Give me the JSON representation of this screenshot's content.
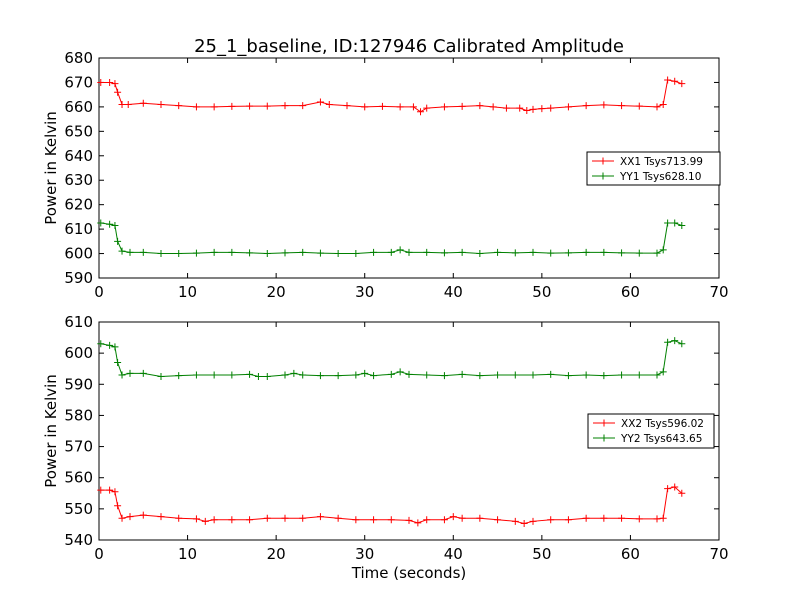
{
  "chart_data": [
    {
      "type": "line",
      "title": "25_1_baseline, ID:127946 Calibrated Amplitude",
      "xlabel": "",
      "ylabel": "Power in Kelvin",
      "xlim": [
        0,
        70
      ],
      "ylim": [
        590,
        680
      ],
      "xticks": [
        "0",
        "10",
        "20",
        "30",
        "40",
        "50",
        "60",
        "70"
      ],
      "yticks": [
        "590",
        "600",
        "610",
        "620",
        "630",
        "640",
        "650",
        "660",
        "670",
        "680"
      ],
      "grid": false,
      "legend": "center-right",
      "marker": "+",
      "series": [
        {
          "name": "XX1 Tsys713.99",
          "color": "#ff0000",
          "points": [
            [
              0.2,
              670
            ],
            [
              1.2,
              670
            ],
            [
              1.8,
              669.5
            ],
            [
              2.1,
              666
            ],
            [
              2.6,
              661
            ],
            [
              3.3,
              661
            ],
            [
              5,
              661.5
            ],
            [
              7,
              661
            ],
            [
              9,
              660.5
            ],
            [
              11,
              660
            ],
            [
              13,
              660
            ],
            [
              15,
              660.2
            ],
            [
              17,
              660.3
            ],
            [
              19,
              660.3
            ],
            [
              21,
              660.5
            ],
            [
              23,
              660.5
            ],
            [
              25,
              662
            ],
            [
              26,
              661
            ],
            [
              28,
              660.5
            ],
            [
              30,
              660
            ],
            [
              32,
              660.2
            ],
            [
              34,
              660
            ],
            [
              35.5,
              660
            ],
            [
              36.3,
              658
            ],
            [
              37,
              659.5
            ],
            [
              39,
              660
            ],
            [
              41,
              660.2
            ],
            [
              43,
              660.5
            ],
            [
              44.5,
              660
            ],
            [
              46,
              659.5
            ],
            [
              47.5,
              659.5
            ],
            [
              48.3,
              658.5
            ],
            [
              49,
              659
            ],
            [
              50,
              659.3
            ],
            [
              51,
              659.5
            ],
            [
              53,
              660
            ],
            [
              55,
              660.5
            ],
            [
              57,
              660.8
            ],
            [
              59,
              660.5
            ],
            [
              61,
              660.3
            ],
            [
              63,
              660
            ],
            [
              63.7,
              661
            ],
            [
              64.2,
              671
            ],
            [
              65,
              670.5
            ],
            [
              65.8,
              669.5
            ]
          ]
        },
        {
          "name": "YY1 Tsys628.10",
          "color": "#008000",
          "points": [
            [
              0.2,
              612.5
            ],
            [
              1.2,
              612
            ],
            [
              1.8,
              611.5
            ],
            [
              2.1,
              605
            ],
            [
              2.6,
              601
            ],
            [
              3.5,
              600.5
            ],
            [
              5,
              600.5
            ],
            [
              7,
              600
            ],
            [
              9,
              600
            ],
            [
              11,
              600.2
            ],
            [
              13,
              600.5
            ],
            [
              15,
              600.5
            ],
            [
              17,
              600.3
            ],
            [
              19,
              600
            ],
            [
              21,
              600.3
            ],
            [
              23,
              600.5
            ],
            [
              25,
              600.2
            ],
            [
              27,
              600
            ],
            [
              29,
              600
            ],
            [
              31,
              600.5
            ],
            [
              33,
              600.5
            ],
            [
              34,
              601.5
            ],
            [
              35,
              600.5
            ],
            [
              37,
              600.5
            ],
            [
              39,
              600.3
            ],
            [
              41,
              600.5
            ],
            [
              43,
              600
            ],
            [
              45,
              600.5
            ],
            [
              47,
              600.3
            ],
            [
              49,
              600.5
            ],
            [
              51,
              600.2
            ],
            [
              53,
              600.3
            ],
            [
              55,
              600.5
            ],
            [
              57,
              600.5
            ],
            [
              59,
              600.3
            ],
            [
              61,
              600.2
            ],
            [
              63,
              600.2
            ],
            [
              63.7,
              601.5
            ],
            [
              64.2,
              612.5
            ],
            [
              65,
              612.5
            ],
            [
              65.8,
              611.5
            ]
          ]
        }
      ]
    },
    {
      "type": "line",
      "title": "",
      "xlabel": "Time (seconds)",
      "ylabel": "Power in Kelvin",
      "xlim": [
        0,
        70
      ],
      "ylim": [
        540,
        610
      ],
      "xticks": [
        "0",
        "10",
        "20",
        "30",
        "40",
        "50",
        "60",
        "70"
      ],
      "yticks": [
        "540",
        "550",
        "560",
        "570",
        "580",
        "590",
        "600",
        "610"
      ],
      "grid": false,
      "legend": "center-right",
      "marker": "+",
      "series": [
        {
          "name": "XX2 Tsys596.02",
          "color": "#ff0000",
          "points": [
            [
              0.2,
              556
            ],
            [
              1.2,
              556
            ],
            [
              1.8,
              555.5
            ],
            [
              2.1,
              551
            ],
            [
              2.6,
              547
            ],
            [
              3.5,
              547.5
            ],
            [
              5,
              548
            ],
            [
              7,
              547.5
            ],
            [
              9,
              547
            ],
            [
              11,
              546.8
            ],
            [
              12,
              546
            ],
            [
              13,
              546.5
            ],
            [
              15,
              546.5
            ],
            [
              17,
              546.5
            ],
            [
              19,
              547
            ],
            [
              21,
              547
            ],
            [
              23,
              547
            ],
            [
              25,
              547.5
            ],
            [
              27,
              547
            ],
            [
              29,
              546.5
            ],
            [
              31,
              546.5
            ],
            [
              33,
              546.5
            ],
            [
              35,
              546.3
            ],
            [
              36,
              545.5
            ],
            [
              37,
              546.5
            ],
            [
              39,
              546.5
            ],
            [
              40,
              547.5
            ],
            [
              41,
              547
            ],
            [
              43,
              547
            ],
            [
              45,
              546.5
            ],
            [
              47,
              546
            ],
            [
              48,
              545.3
            ],
            [
              49,
              546
            ],
            [
              51,
              546.5
            ],
            [
              53,
              546.5
            ],
            [
              55,
              547
            ],
            [
              57,
              547
            ],
            [
              59,
              547
            ],
            [
              61,
              546.8
            ],
            [
              63,
              546.8
            ],
            [
              63.7,
              547
            ],
            [
              64.2,
              556.5
            ],
            [
              65,
              557
            ],
            [
              65.8,
              555
            ]
          ]
        },
        {
          "name": "YY2 Tsys643.65",
          "color": "#008000",
          "points": [
            [
              0.2,
              603
            ],
            [
              1.2,
              602.5
            ],
            [
              1.8,
              602
            ],
            [
              2.1,
              597
            ],
            [
              2.6,
              593
            ],
            [
              3.5,
              593.5
            ],
            [
              5,
              593.5
            ],
            [
              7,
              592.5
            ],
            [
              9,
              592.8
            ],
            [
              11,
              593
            ],
            [
              13,
              593
            ],
            [
              15,
              593
            ],
            [
              17,
              593.2
            ],
            [
              18,
              592.5
            ],
            [
              19,
              592.5
            ],
            [
              21,
              593
            ],
            [
              22,
              593.5
            ],
            [
              23,
              593
            ],
            [
              25,
              592.8
            ],
            [
              27,
              592.8
            ],
            [
              29,
              593
            ],
            [
              30,
              593.5
            ],
            [
              31,
              592.8
            ],
            [
              33,
              593.2
            ],
            [
              34,
              594
            ],
            [
              35,
              593.2
            ],
            [
              37,
              593
            ],
            [
              39,
              592.8
            ],
            [
              41,
              593.2
            ],
            [
              43,
              592.8
            ],
            [
              45,
              593
            ],
            [
              47,
              593
            ],
            [
              49,
              593
            ],
            [
              51,
              593.2
            ],
            [
              53,
              592.8
            ],
            [
              55,
              593
            ],
            [
              57,
              592.8
            ],
            [
              59,
              593
            ],
            [
              61,
              593
            ],
            [
              63,
              593
            ],
            [
              63.7,
              594
            ],
            [
              64.2,
              603.5
            ],
            [
              65,
              604
            ],
            [
              65.8,
              603
            ]
          ]
        }
      ]
    }
  ]
}
